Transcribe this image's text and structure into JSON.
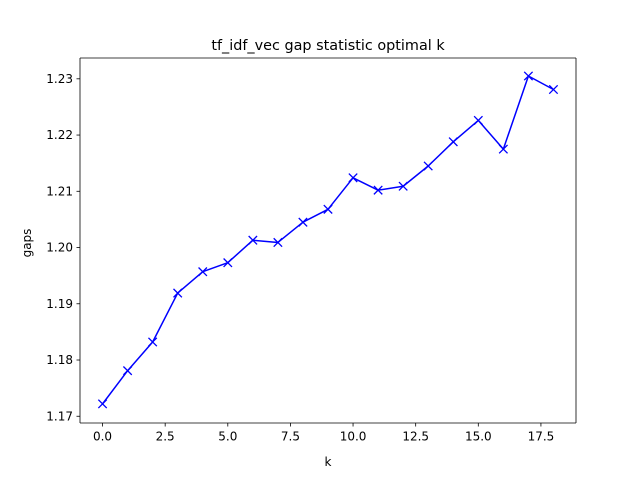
{
  "chart_data": {
    "type": "line",
    "title": "tf_idf_vec gap statistic optimal k",
    "xlabel": "k",
    "ylabel": "gaps",
    "xlim": [
      -0.9,
      18.9
    ],
    "ylim": [
      1.1688,
      1.2337
    ],
    "x_ticks": [
      0.0,
      2.5,
      5.0,
      7.5,
      10.0,
      12.5,
      15.0,
      17.5
    ],
    "x_tick_labels": [
      "0.0",
      "2.5",
      "5.0",
      "7.5",
      "10.0",
      "12.5",
      "15.0",
      "17.5"
    ],
    "y_ticks": [
      1.17,
      1.18,
      1.19,
      1.2,
      1.21,
      1.22,
      1.23
    ],
    "y_tick_labels": [
      "1.17",
      "1.18",
      "1.19",
      "1.20",
      "1.21",
      "1.22",
      "1.23"
    ],
    "grid": false,
    "legend": "none",
    "series": [
      {
        "color": "#0000ff",
        "marker": "x",
        "x": [
          0,
          1,
          2,
          3,
          4,
          5,
          6,
          7,
          8,
          9,
          10,
          11,
          12,
          13,
          14,
          15,
          16,
          17,
          18
        ],
        "y": [
          1.1722,
          1.1781,
          1.1832,
          1.1919,
          1.1957,
          1.1973,
          1.2013,
          1.2009,
          1.2045,
          1.2068,
          1.2124,
          1.2102,
          1.2109,
          1.2145,
          1.2188,
          1.2226,
          1.2175,
          1.2305,
          1.2281
        ]
      }
    ]
  }
}
